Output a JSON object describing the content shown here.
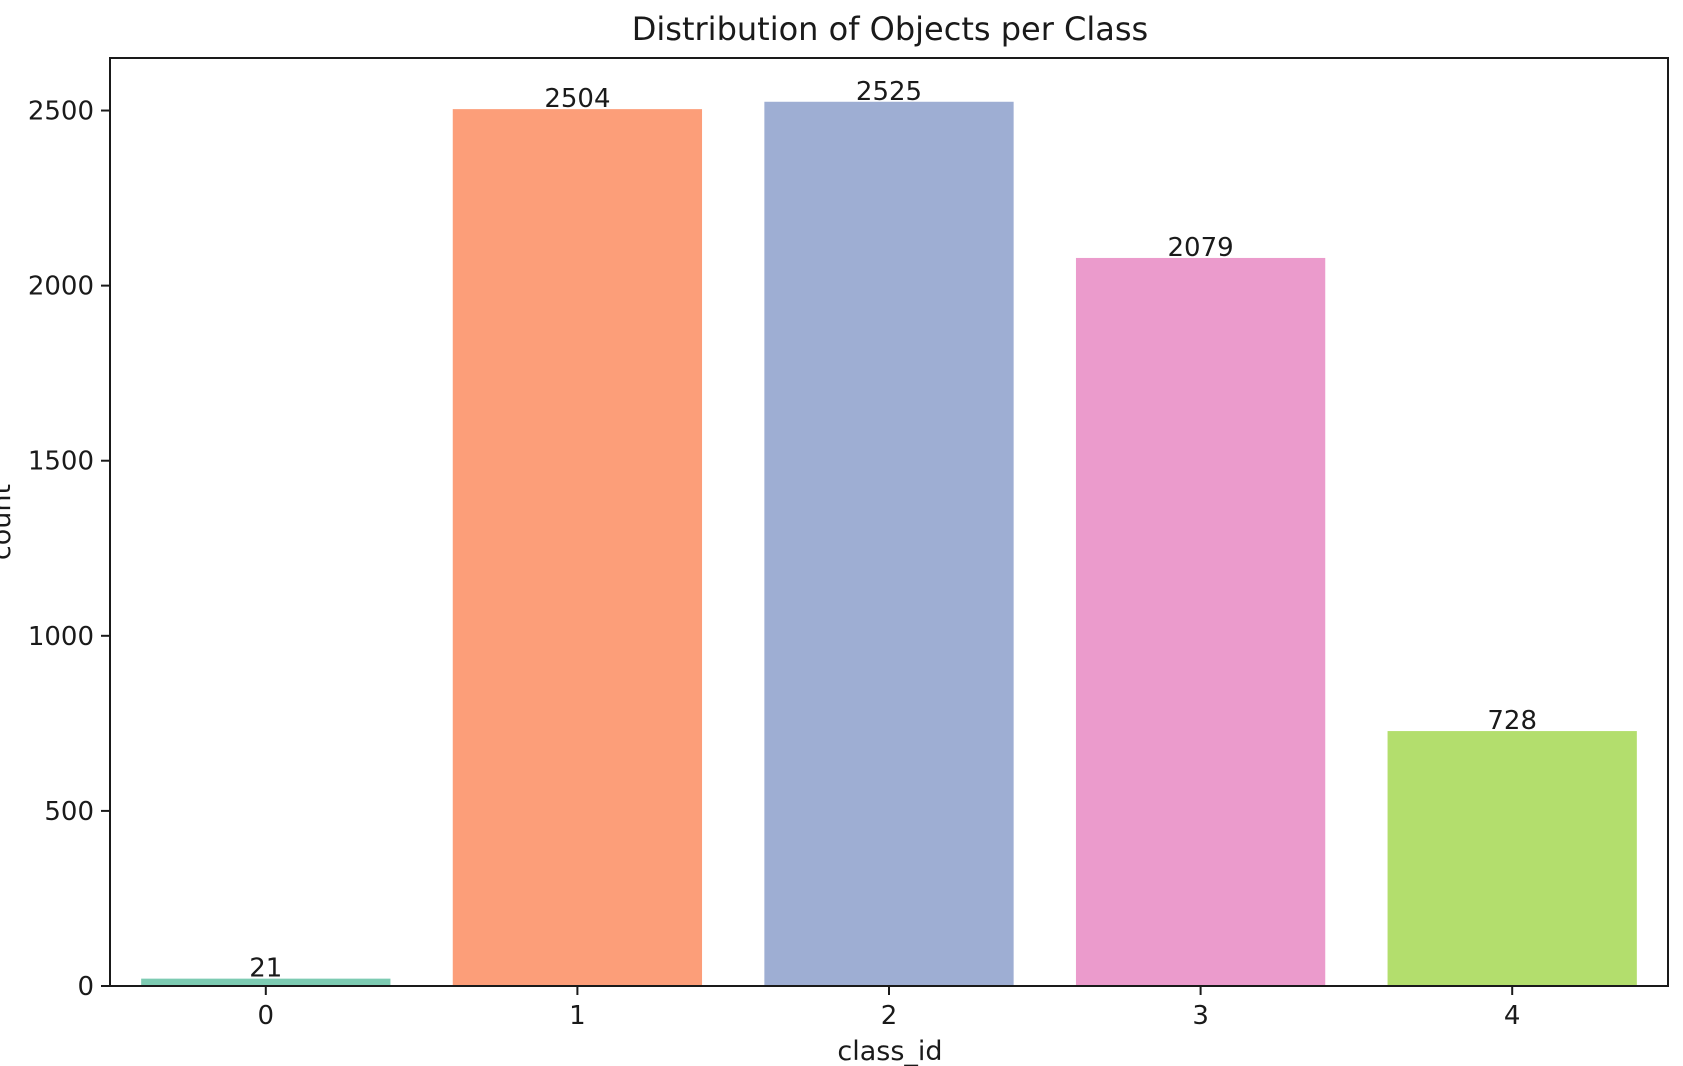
{
  "chart_data": {
    "type": "bar",
    "title": "Distribution of Objects per Class",
    "xlabel": "class_id",
    "ylabel": "count",
    "categories": [
      "0",
      "1",
      "2",
      "3",
      "4"
    ],
    "values": [
      21,
      2504,
      2525,
      2079,
      728
    ],
    "data_labels": [
      "21",
      "2504",
      "2525",
      "2079",
      "728"
    ],
    "colors": [
      "#66c2a5",
      "#fc8d62",
      "#8da0cb",
      "#e78ac3",
      "#a6d854"
    ],
    "bar_alpha": 0.85,
    "ylim": [
      0,
      2650
    ],
    "yticks": [
      0,
      500,
      1000,
      1500,
      2000,
      2500
    ],
    "ytick_labels": [
      "0",
      "500",
      "1000",
      "1500",
      "2000",
      "2500"
    ],
    "grid": false,
    "legend": "none"
  }
}
